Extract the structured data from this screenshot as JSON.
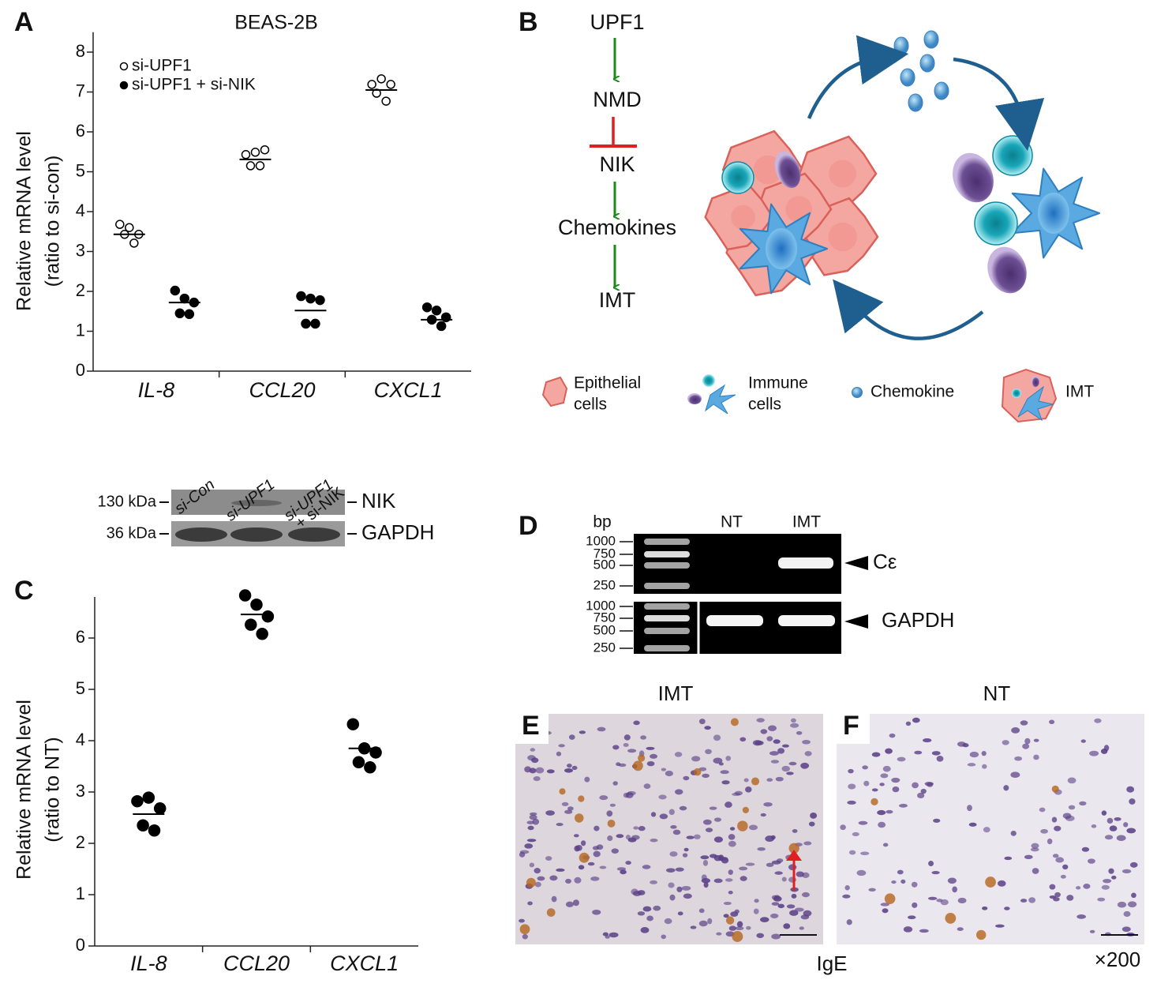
{
  "panel_labels": [
    "A",
    "B",
    "C",
    "D",
    "E",
    "F"
  ],
  "chart_data": [
    {
      "type": "scatter",
      "title": "BEAS-2B",
      "y_label": [
        "Relative mRNA level",
        "(ratio to si-con)"
      ],
      "categories": [
        "IL-8",
        "CCL20",
        "CXCL1"
      ],
      "ylim": [
        0,
        8.5
      ],
      "yticks": [
        0,
        1,
        2,
        3,
        4,
        5,
        6,
        7,
        8
      ],
      "series": [
        {
          "name": "si-UPF1",
          "marker": "open",
          "color": "#000000",
          "values": [
            [
              3.68,
              3.6,
              3.43,
              3.43,
              3.21
            ],
            [
              5.43,
              5.49,
              5.55,
              5.15,
              5.15
            ],
            [
              7.19,
              7.33,
              7.19,
              6.97,
              6.77
            ]
          ],
          "means": [
            3.43,
            5.31,
            7.05
          ]
        },
        {
          "name": "si-UPF1 + si-NIK",
          "marker": "filled",
          "color": "#000000",
          "values": [
            [
              2.02,
              1.82,
              1.72,
              1.45,
              1.43
            ],
            [
              1.88,
              1.82,
              1.78,
              1.19,
              1.19
            ],
            [
              1.6,
              1.52,
              1.35,
              1.29,
              1.13
            ]
          ],
          "means": [
            1.72,
            1.52,
            1.29
          ]
        }
      ]
    },
    {
      "type": "scatter",
      "y_label": [
        "Relative mRNA level",
        "(ratio to NT)"
      ],
      "categories": [
        "IL-8",
        "CCL20",
        "CXCL1"
      ],
      "ylim": [
        0,
        6.8
      ],
      "yticks": [
        0,
        1,
        2,
        3,
        4,
        5,
        6
      ],
      "series": [
        {
          "marker": "filled",
          "color": "#000000",
          "values": [
            [
              2.82,
              2.89,
              2.68,
              2.35,
              2.25
            ],
            [
              6.83,
              6.65,
              6.42,
              6.26,
              6.08
            ],
            [
              4.32,
              3.85,
              3.77,
              3.58,
              3.48
            ]
          ],
          "means": [
            2.57,
            6.46,
            3.85
          ]
        }
      ]
    }
  ],
  "western_blot": {
    "lanes": [
      [
        "si-Con"
      ],
      [
        "si-UPF1"
      ],
      [
        "si-UPF1",
        "+ si-NIK"
      ]
    ],
    "rows": [
      {
        "size": "130 kDa",
        "protein": "NIK"
      },
      {
        "size": "36 kDa",
        "protein": "GAPDH"
      }
    ]
  },
  "pathway": {
    "nodes": [
      "UPF1",
      "NMD",
      "NIK",
      "Chemokines",
      "IMT"
    ]
  },
  "diagram_legend": [
    [
      "Epithelial",
      "cells"
    ],
    [
      "Immune",
      "cells"
    ],
    [
      "Chemokine"
    ],
    [
      "IMT"
    ]
  ],
  "gel": {
    "unit": "bp",
    "lanes": [
      "NT",
      "IMT"
    ],
    "rows": [
      {
        "ladder": [
          1000,
          750,
          500,
          250
        ],
        "label": "Cε"
      },
      {
        "ladder": [
          1000,
          750,
          500,
          250
        ],
        "label": "GAPDH"
      }
    ]
  },
  "histology": {
    "titles": [
      "IMT",
      "NT"
    ],
    "stain": "IgE",
    "magnification": "×200"
  }
}
